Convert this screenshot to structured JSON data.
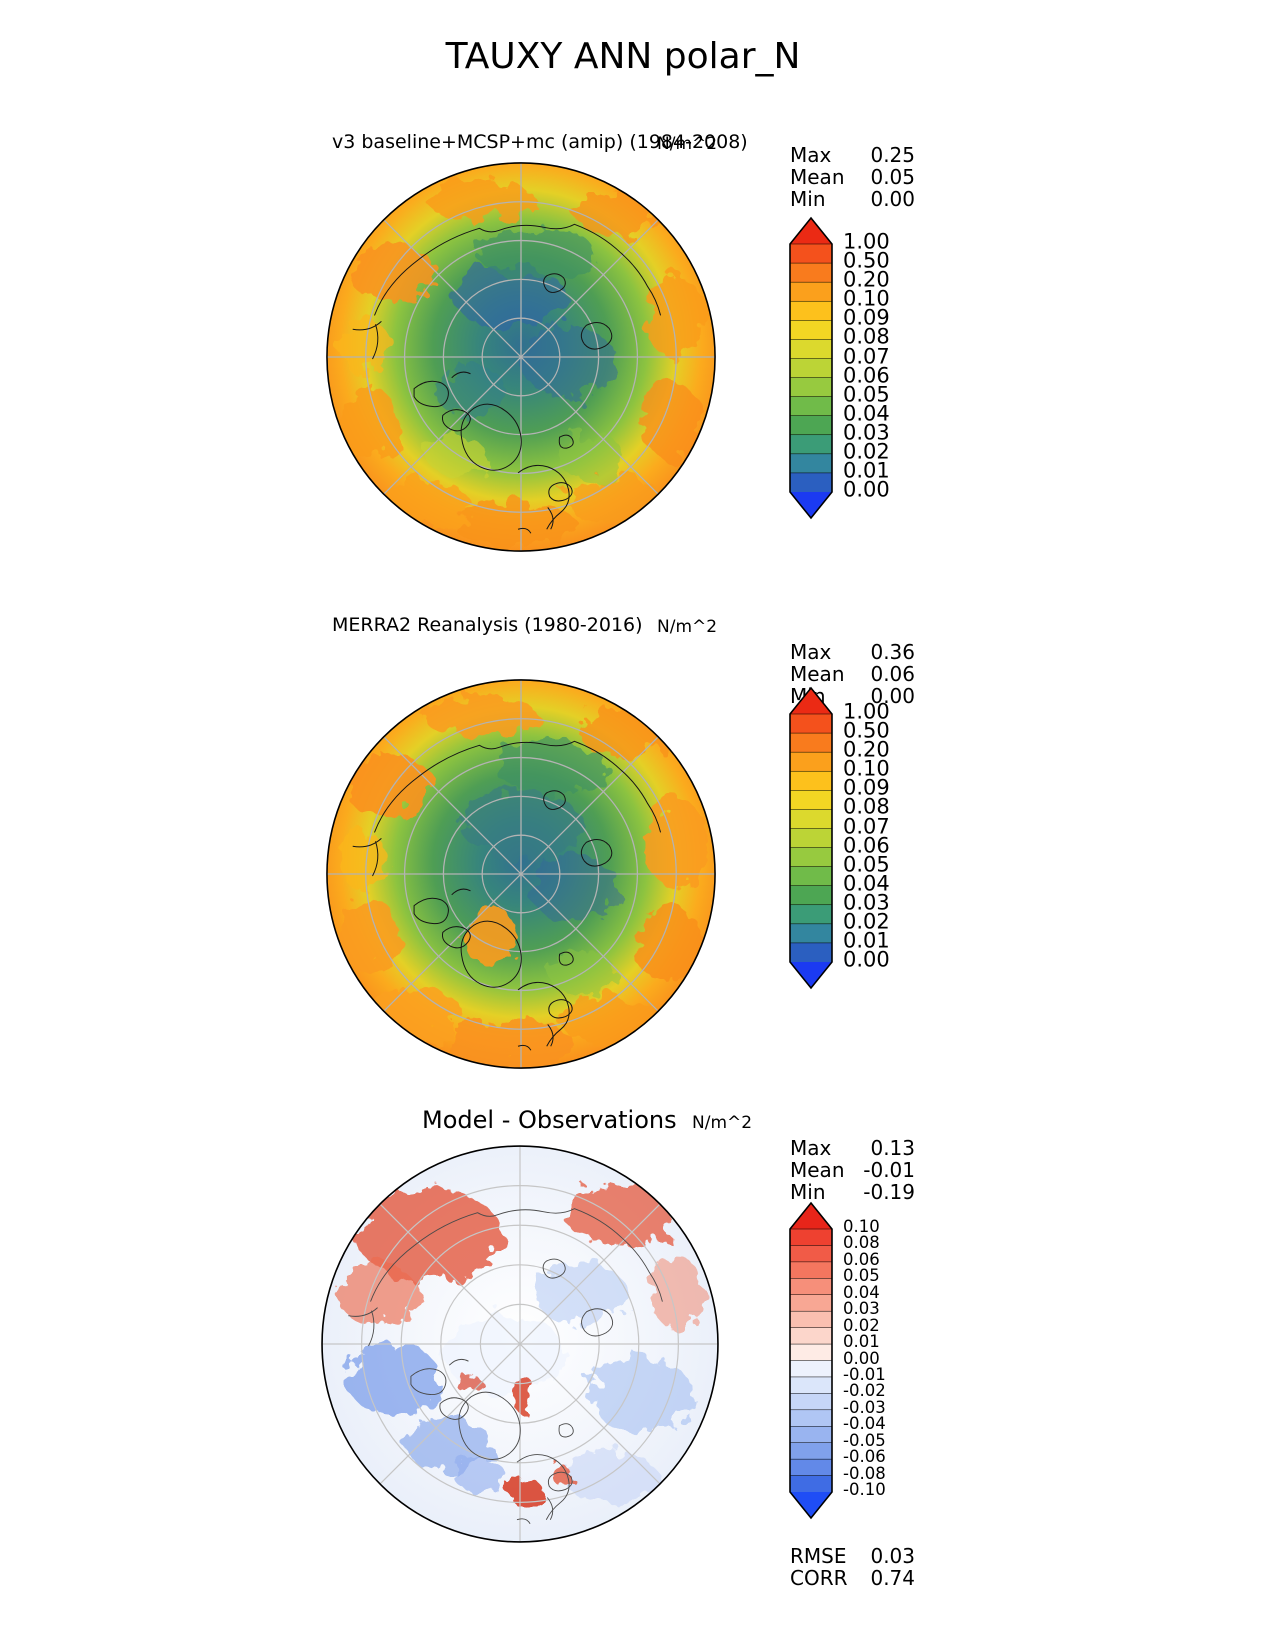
{
  "title": "TAUXY ANN polar_N",
  "panels": [
    {
      "title": "v3 baseline+MCSP+mc (amip) (1984-2008)",
      "units": "N/m^2",
      "stats": [
        {
          "label": "Max",
          "value": "0.25"
        },
        {
          "label": "Mean",
          "value": "0.05"
        },
        {
          "label": "Min",
          "value": "0.00"
        }
      ],
      "colorbar": {
        "ticks": [
          "1.00",
          "0.50",
          "0.20",
          "0.10",
          "0.09",
          "0.08",
          "0.07",
          "0.06",
          "0.05",
          "0.04",
          "0.03",
          "0.02",
          "0.01",
          "0.00"
        ],
        "band_colors": [
          "#f4511c",
          "#f97b1d",
          "#fba01c",
          "#fdc11c",
          "#f2d623",
          "#dcd92d",
          "#bcd436",
          "#97ca3f",
          "#70bb49",
          "#4da653",
          "#3b9c77",
          "#33869f",
          "#2b5fc0"
        ],
        "arrow_top_color": "#eb2a14",
        "arrow_bottom_color": "#1b3af2"
      }
    },
    {
      "title": "MERRA2 Reanalysis (1980-2016)",
      "units": "N/m^2",
      "stats": [
        {
          "label": "Max",
          "value": "0.36"
        },
        {
          "label": "Mean",
          "value": "0.06"
        },
        {
          "label": "Min",
          "value": "0.00"
        }
      ],
      "colorbar": {
        "ticks": [
          "1.00",
          "0.50",
          "0.20",
          "0.10",
          "0.09",
          "0.08",
          "0.07",
          "0.06",
          "0.05",
          "0.04",
          "0.03",
          "0.02",
          "0.01",
          "0.00"
        ],
        "band_colors": [
          "#f4511c",
          "#f97b1d",
          "#fba01c",
          "#fdc11c",
          "#f2d623",
          "#dcd92d",
          "#bcd436",
          "#97ca3f",
          "#70bb49",
          "#4da653",
          "#3b9c77",
          "#33869f",
          "#2b5fc0"
        ],
        "arrow_top_color": "#eb2a14",
        "arrow_bottom_color": "#1b3af2"
      }
    },
    {
      "title": "Model - Observations",
      "units": "N/m^2",
      "stats": [
        {
          "label": "Max",
          "value": "0.13"
        },
        {
          "label": "Mean",
          "value": "-0.01"
        },
        {
          "label": "Min",
          "value": "-0.19"
        }
      ],
      "colorbar": {
        "ticks": [
          "0.10",
          "0.08",
          "0.06",
          "0.05",
          "0.04",
          "0.03",
          "0.02",
          "0.01",
          "0.00",
          "-0.01",
          "-0.02",
          "-0.03",
          "-0.04",
          "-0.05",
          "-0.06",
          "-0.08",
          "-0.10"
        ],
        "band_colors": [
          "#ee4130",
          "#f15b47",
          "#f4765f",
          "#f68f7a",
          "#f8a794",
          "#fabfb0",
          "#fcd6cb",
          "#feebe5",
          "#edf2fd",
          "#dbe6fa",
          "#c6d6f7",
          "#b0c6f4",
          "#99b4f0",
          "#80a1ec",
          "#6289e8",
          "#3f6ce4"
        ],
        "arrow_top_color": "#e8251a",
        "arrow_bottom_color": "#1f4df5"
      },
      "extra_stats": [
        {
          "label": "RMSE",
          "value": "0.03"
        },
        {
          "label": "CORR",
          "value": "0.74"
        }
      ]
    }
  ],
  "chart_data": {
    "type": "heatmap",
    "suptitle": "TAUXY ANN polar_N",
    "variable": "TAUXY",
    "season": "ANN",
    "region": "polar_N",
    "panels": [
      {
        "title": "v3 baseline+MCSP+mc (amip) (1984-2008)",
        "units": "N/m^2",
        "projection": "north_polar_stereographic",
        "max": 0.25,
        "mean": 0.05,
        "min": 0.0,
        "contour_levels": [
          0.0,
          0.01,
          0.02,
          0.03,
          0.04,
          0.05,
          0.06,
          0.07,
          0.08,
          0.09,
          0.1,
          0.2,
          0.5,
          1.0
        ],
        "colorbar_extend": "both"
      },
      {
        "title": "MERRA2 Reanalysis (1980-2016)",
        "units": "N/m^2",
        "projection": "north_polar_stereographic",
        "max": 0.36,
        "mean": 0.06,
        "min": 0.0,
        "contour_levels": [
          0.0,
          0.01,
          0.02,
          0.03,
          0.04,
          0.05,
          0.06,
          0.07,
          0.08,
          0.09,
          0.1,
          0.2,
          0.5,
          1.0
        ],
        "colorbar_extend": "both"
      },
      {
        "title": "Model - Observations",
        "units": "N/m^2",
        "projection": "north_polar_stereographic",
        "max": 0.13,
        "mean": -0.01,
        "min": -0.19,
        "rmse": 0.03,
        "corr": 0.74,
        "contour_levels": [
          -0.1,
          -0.08,
          -0.06,
          -0.05,
          -0.04,
          -0.03,
          -0.02,
          -0.01,
          0.0,
          0.01,
          0.02,
          0.03,
          0.04,
          0.05,
          0.06,
          0.08,
          0.1
        ],
        "colorbar_extend": "both"
      }
    ]
  }
}
